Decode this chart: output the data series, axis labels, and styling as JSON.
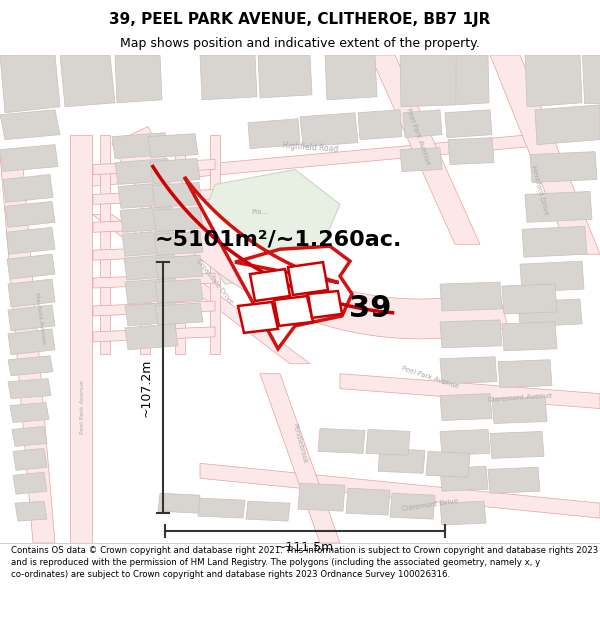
{
  "title": "39, PEEL PARK AVENUE, CLITHEROE, BB7 1JR",
  "subtitle": "Map shows position and indicative extent of the property.",
  "area_label": "~5101m²/~1.260ac.",
  "property_number": "39",
  "dim_horizontal": "~111.5m",
  "dim_vertical": "~107.2m",
  "footer": "Contains OS data © Crown copyright and database right 2021. This information is subject to Crown copyright and database rights 2023 and is reproduced with the permission of HM Land Registry. The polygons (including the associated geometry, namely x, y co-ordinates) are subject to Crown copyright and database rights 2023 Ordnance Survey 100026316.",
  "map_bg": "#f5f4f0",
  "road_line_color": "#e8a0a0",
  "road_fill_color": "#fce8e8",
  "building_color": "#d8d5d0",
  "building_edge": "#c8c0bc",
  "highlight_color": "#cc0000",
  "green_color": "#e8f0e4",
  "green_edge": "#c8d8c0",
  "white": "#ffffff",
  "title_fontsize": 11,
  "subtitle_fontsize": 9,
  "footer_fontsize": 6.2,
  "area_fontsize": 16,
  "number_fontsize": 22,
  "dim_fontsize": 9
}
